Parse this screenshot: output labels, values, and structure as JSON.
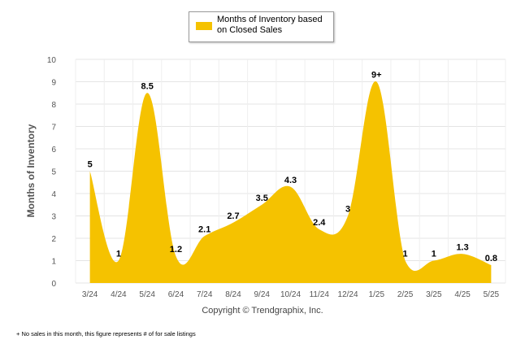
{
  "chart_data": {
    "type": "area",
    "categories": [
      "3/24",
      "4/24",
      "5/24",
      "6/24",
      "7/24",
      "8/24",
      "9/24",
      "10/24",
      "11/24",
      "12/24",
      "1/25",
      "2/25",
      "3/25",
      "4/25",
      "5/25"
    ],
    "series": [
      {
        "name": "Months of Inventory based on Closed Sales",
        "values": [
          5,
          1,
          8.5,
          1.2,
          2.1,
          2.7,
          3.5,
          4.3,
          2.4,
          3,
          9,
          1,
          1,
          1.3,
          0.8
        ],
        "labels": [
          "5",
          "1",
          "8.5",
          "1.2",
          "2.1",
          "2.7",
          "3.5",
          "4.3",
          "2.4",
          "3",
          "9+",
          "1",
          "1",
          "1.3",
          "0.8"
        ],
        "color": "#F5C200"
      }
    ],
    "ylabel": "Months of Inventory",
    "yticks": [
      "0",
      "1",
      "2",
      "3",
      "4",
      "5",
      "6",
      "7",
      "8",
      "9",
      "10"
    ],
    "ylim": [
      0,
      10
    ],
    "grid": true,
    "legend_position": "top-center"
  },
  "copyright": "Copyright © Trendgraphix, Inc.",
  "footnote": "+  No sales in this month, this figure represents # of for sale listings",
  "colors": {
    "area": "#F5C200",
    "grid": "#e4e4e4",
    "axis_text": "#555555"
  }
}
